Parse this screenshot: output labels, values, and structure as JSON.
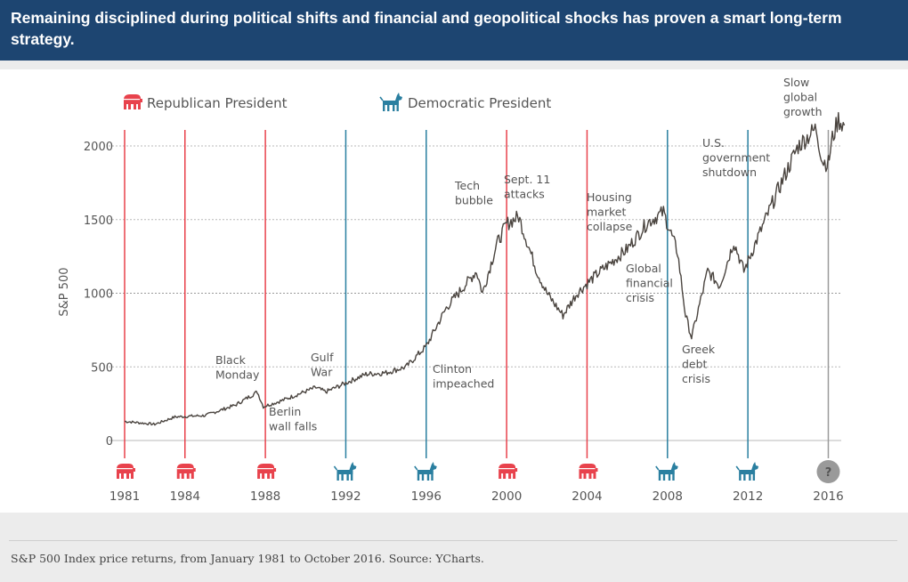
{
  "header": {
    "title": "Remaining disciplined during political shifts and financial and geopolitical shocks has proven a smart long-term strategy."
  },
  "legend": {
    "republican_label": "Republican President",
    "democratic_label": "Democratic President"
  },
  "colors": {
    "header_bg": "#1d4571",
    "republican": "#e8424c",
    "democratic": "#2a7fa0",
    "unknown": "#9a9a9a",
    "line": "#4a443f"
  },
  "chart_data": {
    "type": "line",
    "title": "",
    "xlabel": "",
    "ylabel": "S&P 500",
    "xlim": [
      1981,
      2016.8
    ],
    "ylim": [
      0,
      2200
    ],
    "yticks": [
      0,
      500,
      1000,
      1500,
      2000
    ],
    "ytick_labels": [
      "0",
      "500",
      "1000",
      "1500",
      "2000"
    ],
    "grid": "horizontal dotted",
    "series": [
      {
        "name": "S&P 500 Index price",
        "x": [
          1981.0,
          1982.5,
          1983.5,
          1985.0,
          1986.5,
          1987.6,
          1987.9,
          1988.8,
          1990.5,
          1991.0,
          1993.0,
          1994.0,
          1995.0,
          1996.0,
          1997.0,
          1998.5,
          1998.8,
          1999.5,
          2000.0,
          2000.6,
          2001.5,
          2002.0,
          2002.8,
          2003.5,
          2004.5,
          2006.0,
          2007.0,
          2007.8,
          2008.5,
          2008.9,
          2009.2,
          2010.0,
          2010.6,
          2011.3,
          2011.8,
          2012.5,
          2013.5,
          2014.5,
          2015.4,
          2015.7,
          2016.0,
          2016.2,
          2016.5,
          2016.8
        ],
        "y": [
          130,
          110,
          160,
          170,
          240,
          330,
          230,
          270,
          360,
          330,
          450,
          460,
          500,
          640,
          900,
          1150,
          1000,
          1330,
          1470,
          1520,
          1150,
          1000,
          850,
          1000,
          1130,
          1300,
          1480,
          1550,
          1280,
          850,
          700,
          1150,
          1050,
          1350,
          1150,
          1380,
          1700,
          2000,
          2120,
          1900,
          1880,
          2050,
          2180,
          2140
        ]
      }
    ],
    "election_markers": [
      {
        "year": "1981",
        "party": "republican"
      },
      {
        "year": "1984",
        "party": "republican"
      },
      {
        "year": "1988",
        "party": "republican"
      },
      {
        "year": "1992",
        "party": "democratic"
      },
      {
        "year": "1996",
        "party": "democratic"
      },
      {
        "year": "2000",
        "party": "republican"
      },
      {
        "year": "2004",
        "party": "republican"
      },
      {
        "year": "2008",
        "party": "democratic"
      },
      {
        "year": "2012",
        "party": "democratic"
      },
      {
        "year": "2016",
        "party": "unknown",
        "symbol": "?"
      }
    ],
    "annotations": [
      {
        "lines": [
          "Black",
          "Monday"
        ]
      },
      {
        "lines": [
          "Berlin",
          "wall falls"
        ]
      },
      {
        "lines": [
          "Gulf",
          "War"
        ]
      },
      {
        "lines": [
          "Clinton",
          "impeached"
        ]
      },
      {
        "lines": [
          "Tech",
          "bubble"
        ]
      },
      {
        "lines": [
          "Sept. 11",
          "attacks"
        ]
      },
      {
        "lines": [
          "Housing",
          "market",
          "collapse"
        ]
      },
      {
        "lines": [
          "Global",
          "financial",
          "crisis"
        ]
      },
      {
        "lines": [
          "Greek",
          "debt",
          "crisis"
        ]
      },
      {
        "lines": [
          "U.S.",
          "government",
          "shutdown"
        ]
      },
      {
        "lines": [
          "Slow",
          "global",
          "growth"
        ]
      }
    ]
  },
  "caption": "S&P 500 Index price returns, from January 1981 to October 2016. Source: YCharts."
}
